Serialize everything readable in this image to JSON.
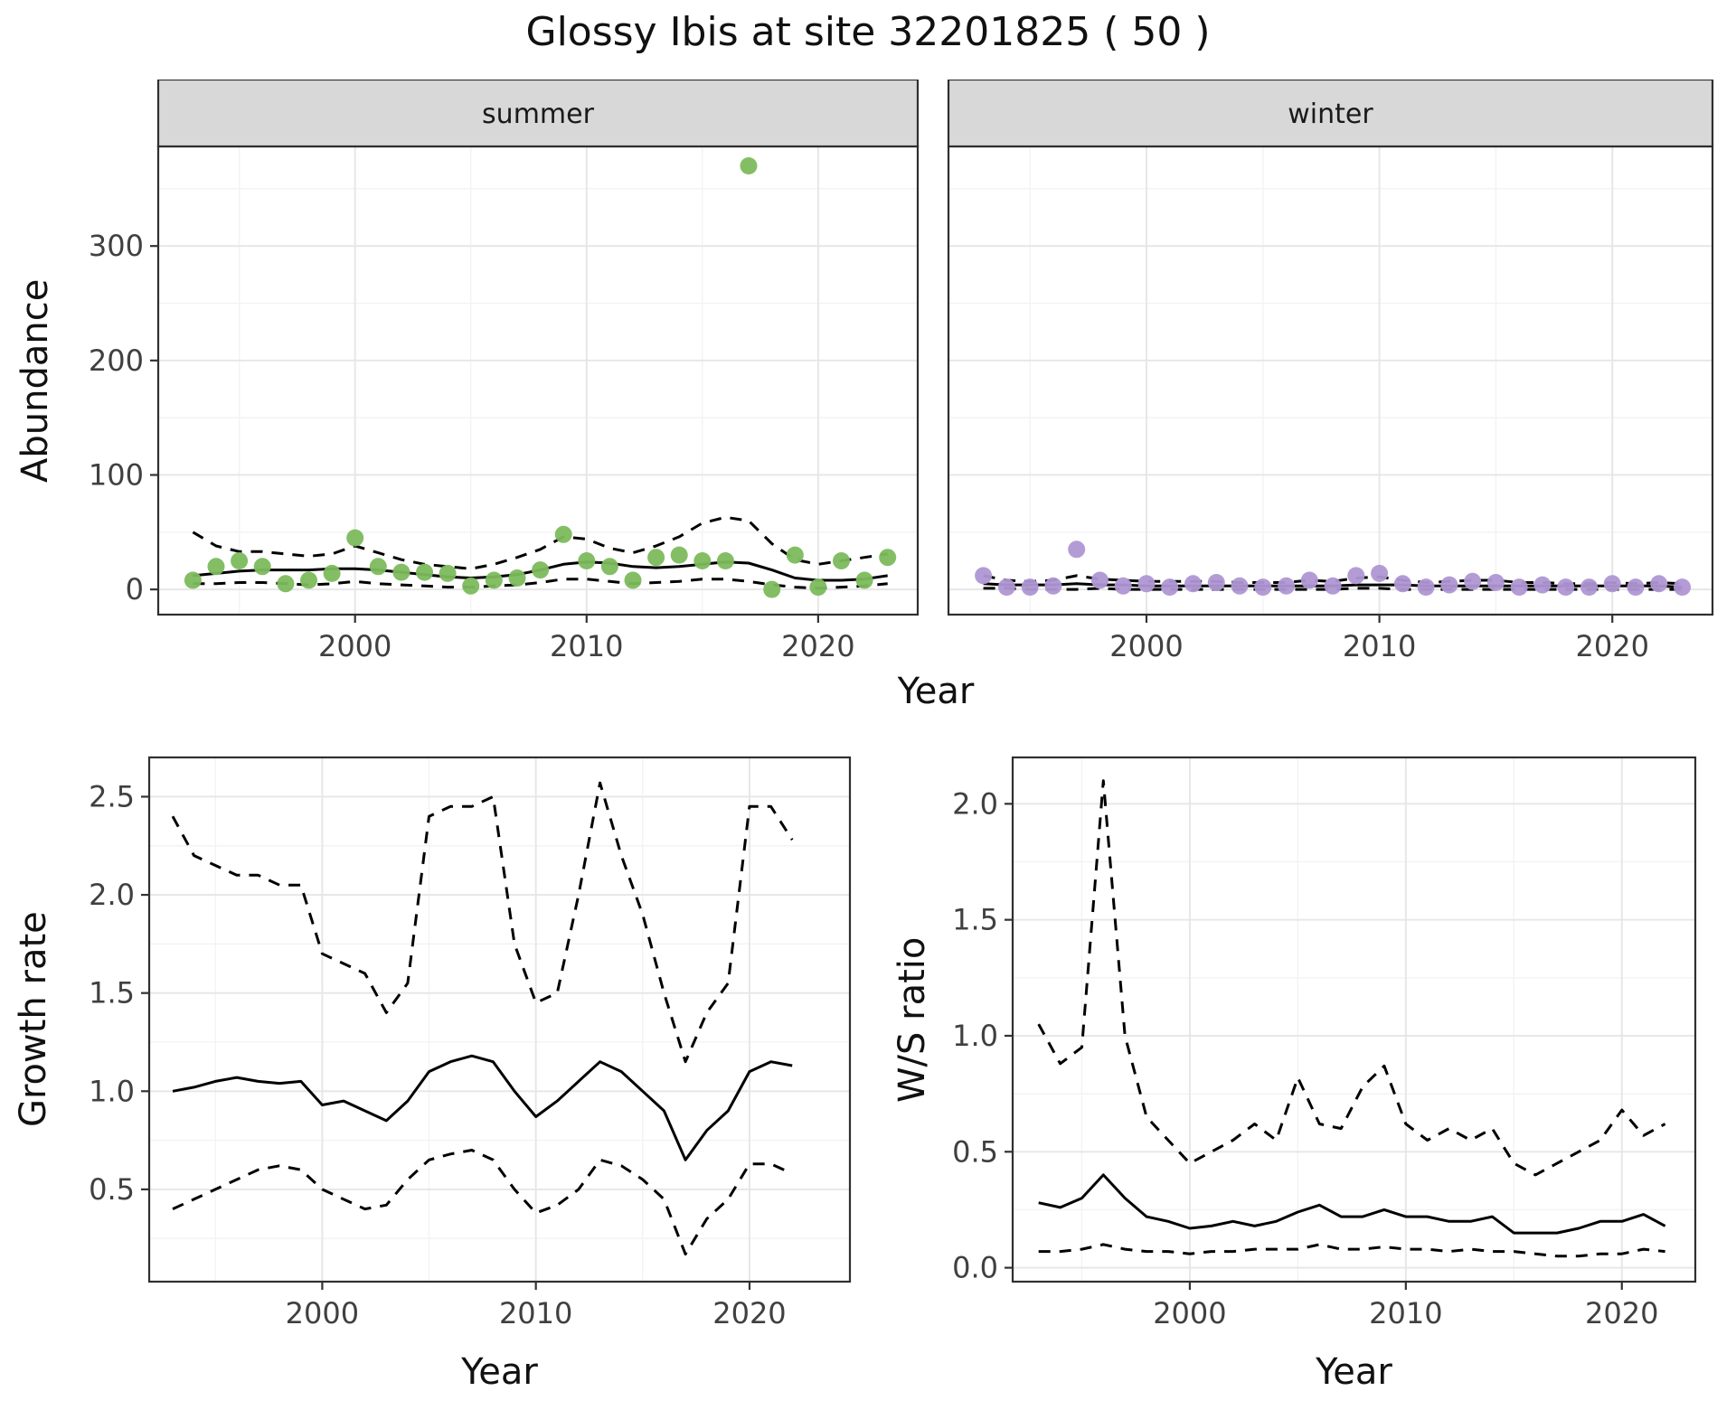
{
  "title": "Glossy Ibis at site 32201825 ( 50 )",
  "colors": {
    "summer_point": "#7cba5d",
    "winter_point": "#af97d3",
    "fit_line": "#000000",
    "grid_major": "#e6e6e6",
    "grid_minor": "#f3f3f3",
    "strip_bg": "#d8d8d8",
    "panel_border": "#2f2f2f",
    "tick_mark": "#333333",
    "tick_label": "#404040",
    "panel_bg": "#ffffff"
  },
  "chart_data": [
    {
      "id": "abundance_by_season",
      "type": "scatter",
      "title": "",
      "xlabel": "Year",
      "ylabel": "Abundance",
      "xlim": [
        1991.5,
        2024.3
      ],
      "ylim": [
        -22,
        387
      ],
      "xticks": [
        2000,
        2010,
        2020
      ],
      "xtick_labels": [
        "2000",
        "2010",
        "2020"
      ],
      "xticks_minor": [
        1995,
        2005,
        2015
      ],
      "yticks": [
        0,
        100,
        200,
        300
      ],
      "ytick_labels": [
        "0",
        "100",
        "200",
        "300"
      ],
      "yticks_minor": [
        50,
        150,
        250,
        350
      ],
      "legend": "none",
      "grid": "on",
      "years": [
        1993,
        1994,
        1995,
        1996,
        1997,
        1998,
        1999,
        2000,
        2001,
        2002,
        2003,
        2004,
        2005,
        2006,
        2007,
        2008,
        2009,
        2010,
        2011,
        2012,
        2013,
        2014,
        2015,
        2016,
        2017,
        2018,
        2019,
        2020,
        2021,
        2022,
        2023
      ],
      "facets": [
        {
          "label": "summer",
          "points": [
            8,
            20,
            25,
            20,
            5,
            8,
            14,
            45,
            20,
            15,
            15,
            14,
            3,
            8,
            10,
            17,
            48,
            25,
            20,
            8,
            28,
            30,
            25,
            25,
            370,
            0,
            30,
            2,
            25,
            8,
            28
          ],
          "fit": [
            12,
            14,
            16,
            17,
            17,
            17,
            18,
            18,
            17,
            15,
            13,
            11,
            10,
            11,
            13,
            17,
            22,
            24,
            23,
            20,
            19,
            20,
            22,
            24,
            23,
            17,
            10,
            8,
            8,
            9,
            12
          ],
          "upper": [
            50,
            38,
            33,
            33,
            31,
            29,
            31,
            38,
            32,
            26,
            22,
            20,
            18,
            22,
            28,
            35,
            46,
            44,
            36,
            32,
            38,
            46,
            58,
            63,
            60,
            40,
            26,
            22,
            25,
            28,
            31
          ],
          "lower": [
            5,
            5,
            6,
            6,
            5,
            4,
            5,
            7,
            5,
            4,
            3,
            2,
            2,
            3,
            4,
            6,
            9,
            9,
            7,
            5,
            6,
            7,
            9,
            9,
            7,
            4,
            2,
            1,
            2,
            3,
            5
          ]
        },
        {
          "label": "winter",
          "points": [
            12,
            2,
            2,
            3,
            35,
            8,
            3,
            5,
            2,
            5,
            6,
            3,
            2,
            3,
            8,
            3,
            12,
            14,
            5,
            2,
            4,
            7,
            6,
            2,
            4,
            2,
            2,
            5,
            2,
            5,
            2
          ],
          "fit": [
            5,
            4,
            4,
            4,
            5,
            4,
            4,
            3,
            3,
            3,
            3,
            3,
            3,
            3,
            3,
            3,
            4,
            4,
            4,
            3,
            3,
            3,
            3,
            3,
            3,
            3,
            3,
            3,
            3,
            3,
            2
          ],
          "upper": [
            12,
            8,
            7,
            8,
            12,
            9,
            8,
            7,
            7,
            7,
            7,
            6,
            6,
            6,
            8,
            7,
            10,
            11,
            8,
            6,
            7,
            8,
            8,
            6,
            6,
            5,
            5,
            6,
            5,
            6,
            5
          ],
          "lower": [
            1,
            1,
            0,
            0,
            0,
            1,
            0,
            0,
            0,
            0,
            0,
            0,
            0,
            0,
            0,
            0,
            1,
            1,
            0,
            0,
            0,
            0,
            0,
            0,
            0,
            0,
            0,
            0,
            0,
            0,
            0
          ]
        }
      ]
    },
    {
      "id": "growth_rate",
      "type": "line",
      "title": "",
      "xlabel": "Year",
      "ylabel": "Growth rate",
      "xlim": [
        1991.9,
        2024.7
      ],
      "ylim": [
        0.03,
        2.7
      ],
      "xticks": [
        2000,
        2010,
        2020
      ],
      "xtick_labels": [
        "2000",
        "2010",
        "2020"
      ],
      "xticks_minor": [
        1995,
        2005,
        2015
      ],
      "yticks": [
        0.5,
        1.0,
        1.5,
        2.0,
        2.5
      ],
      "ytick_labels": [
        "0.5",
        "1.0",
        "1.5",
        "2.0",
        "2.5"
      ],
      "yticks_minor": [
        0.25,
        0.75,
        1.25,
        1.75,
        2.25
      ],
      "legend": "none",
      "grid": "on",
      "years": [
        1993,
        1994,
        1995,
        1996,
        1997,
        1998,
        1999,
        2000,
        2001,
        2002,
        2003,
        2004,
        2005,
        2006,
        2007,
        2008,
        2009,
        2010,
        2011,
        2012,
        2013,
        2014,
        2015,
        2016,
        2017,
        2018,
        2019,
        2020,
        2021,
        2022
      ],
      "fit": [
        1.0,
        1.02,
        1.05,
        1.07,
        1.05,
        1.04,
        1.05,
        0.93,
        0.95,
        0.9,
        0.85,
        0.95,
        1.1,
        1.15,
        1.18,
        1.15,
        1.0,
        0.87,
        0.95,
        1.05,
        1.15,
        1.1,
        1.0,
        0.9,
        0.65,
        0.8,
        0.9,
        1.1,
        1.15,
        1.13
      ],
      "upper": [
        2.4,
        2.2,
        2.15,
        2.1,
        2.1,
        2.05,
        2.05,
        1.7,
        1.65,
        1.6,
        1.4,
        1.55,
        2.4,
        2.45,
        2.45,
        2.5,
        1.75,
        1.45,
        1.5,
        2.0,
        2.57,
        2.2,
        1.9,
        1.5,
        1.15,
        1.4,
        1.55,
        2.45,
        2.45,
        2.28
      ],
      "lower": [
        0.4,
        0.45,
        0.5,
        0.55,
        0.6,
        0.62,
        0.6,
        0.5,
        0.45,
        0.4,
        0.42,
        0.55,
        0.65,
        0.68,
        0.7,
        0.65,
        0.5,
        0.38,
        0.42,
        0.5,
        0.65,
        0.62,
        0.55,
        0.45,
        0.17,
        0.35,
        0.45,
        0.63,
        0.63,
        0.58
      ]
    },
    {
      "id": "ws_ratio",
      "type": "line",
      "title": "",
      "xlabel": "Year",
      "ylabel": "W/S ratio",
      "xlim": [
        1991.8,
        2023.4
      ],
      "ylim": [
        -0.06,
        2.2
      ],
      "xticks": [
        2000,
        2010,
        2020
      ],
      "xtick_labels": [
        "2000",
        "2010",
        "2020"
      ],
      "xticks_minor": [
        1995,
        2005,
        2015
      ],
      "yticks": [
        0.0,
        0.5,
        1.0,
        1.5,
        2.0
      ],
      "ytick_labels": [
        "0.0",
        "0.5",
        "1.0",
        "1.5",
        "2.0"
      ],
      "yticks_minor": [
        0.25,
        0.75,
        1.25,
        1.75
      ],
      "legend": "none",
      "grid": "on",
      "years": [
        1993,
        1994,
        1995,
        1996,
        1997,
        1998,
        1999,
        2000,
        2001,
        2002,
        2003,
        2004,
        2005,
        2006,
        2007,
        2008,
        2009,
        2010,
        2011,
        2012,
        2013,
        2014,
        2015,
        2016,
        2017,
        2018,
        2019,
        2020,
        2021,
        2022
      ],
      "fit": [
        0.28,
        0.26,
        0.3,
        0.4,
        0.3,
        0.22,
        0.2,
        0.17,
        0.18,
        0.2,
        0.18,
        0.2,
        0.24,
        0.27,
        0.22,
        0.22,
        0.25,
        0.22,
        0.22,
        0.2,
        0.2,
        0.22,
        0.15,
        0.15,
        0.15,
        0.17,
        0.2,
        0.2,
        0.23,
        0.18
      ],
      "upper": [
        1.05,
        0.88,
        0.95,
        2.1,
        1.0,
        0.65,
        0.55,
        0.45,
        0.5,
        0.55,
        0.62,
        0.55,
        0.82,
        0.62,
        0.6,
        0.78,
        0.87,
        0.62,
        0.55,
        0.6,
        0.55,
        0.6,
        0.45,
        0.4,
        0.45,
        0.5,
        0.55,
        0.68,
        0.57,
        0.62
      ],
      "lower": [
        0.07,
        0.07,
        0.08,
        0.1,
        0.08,
        0.07,
        0.07,
        0.06,
        0.07,
        0.07,
        0.08,
        0.08,
        0.08,
        0.1,
        0.08,
        0.08,
        0.09,
        0.08,
        0.08,
        0.07,
        0.08,
        0.07,
        0.07,
        0.06,
        0.05,
        0.05,
        0.06,
        0.06,
        0.08,
        0.07
      ]
    }
  ]
}
